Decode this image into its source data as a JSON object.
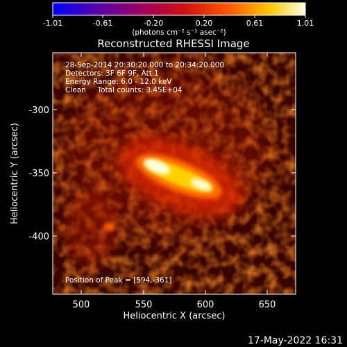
{
  "colorbar": {
    "tick_labels": [
      "-1.01",
      "-0.61",
      "-0.20",
      "0.20",
      "0.61",
      "1.01"
    ],
    "units": "(photons cm⁻² s⁻¹ asec⁻²)",
    "colors": [
      "#0000ff",
      "#5a00a8",
      "#a00060",
      "#d01010",
      "#ff5a00",
      "#ffc800",
      "#ffffe8"
    ]
  },
  "title": "Reconstructed RHESSI Image",
  "info": {
    "line1": "28-Sep-2014 20:30:20.000 to 20:34:20.000",
    "line2": "Detectors: 3F 6F 9F, Att 1",
    "line3": "Energy Range: 6.0 - 12.0 keV",
    "line4": "Clean     Total counts: 3.45E+04"
  },
  "peak_text": "Position of Peak = [594,-361]",
  "x_axis": {
    "label": "Heliocentric X (arcsec)",
    "ticks": [
      "500",
      "550",
      "600",
      "650"
    ]
  },
  "y_axis": {
    "label": "Heliocentric Y (arcsec)",
    "ticks": [
      "-300",
      "-350",
      "-400"
    ]
  },
  "footer_timestamp": "17-May-2022 16:31"
}
